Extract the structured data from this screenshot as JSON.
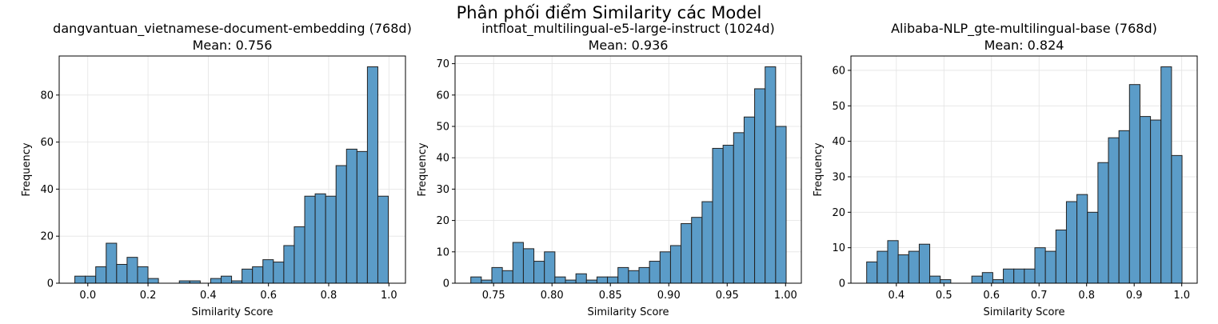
{
  "figure": {
    "suptitle": "Phân phối điểm Similarity các Model"
  },
  "style": {
    "bar_color": "#5b9cc8",
    "bar_edge": "#222222",
    "grid_color": "#e3e3e3"
  },
  "chart_data": [
    {
      "type": "bar",
      "title": "dangvantuan_vietnamese-document-embedding (768d)",
      "subtitle": "Mean: 0.756",
      "xlabel": "Similarity Score",
      "ylabel": "Frequency",
      "grid": true,
      "xlim": [
        -0.095,
        1.055
      ],
      "ylim": [
        0,
        96.6
      ],
      "xticks": [
        0.0,
        0.2,
        0.4,
        0.6,
        0.8,
        1.0
      ],
      "xtick_labels": [
        "0.0",
        "0.2",
        "0.4",
        "0.6",
        "0.8",
        "1.0"
      ],
      "yticks": [
        0,
        20,
        40,
        60,
        80
      ],
      "bin_start": -0.043,
      "bin_width": 0.0347,
      "values": [
        3,
        3,
        7,
        17,
        8,
        11,
        7,
        2,
        0,
        0,
        1,
        1,
        0,
        2,
        3,
        1,
        6,
        7,
        10,
        9,
        16,
        24,
        37,
        38,
        37,
        50,
        57,
        56,
        92,
        37
      ]
    },
    {
      "type": "bar",
      "title": "intfloat_multilingual-e5-large-instruct (1024d)",
      "subtitle": "Mean: 0.936",
      "xlabel": "Similarity Score",
      "ylabel": "Frequency",
      "grid": true,
      "xlim": [
        0.717,
        1.0135
      ],
      "ylim": [
        0,
        72.45
      ],
      "xticks": [
        0.75,
        0.8,
        0.85,
        0.9,
        0.95,
        1.0
      ],
      "xtick_labels": [
        "0.75",
        "0.80",
        "0.85",
        "0.90",
        "0.95",
        "1.00"
      ],
      "yticks": [
        0,
        10,
        20,
        30,
        40,
        50,
        60,
        70
      ],
      "bin_start": 0.7305,
      "bin_width": 0.009,
      "values": [
        2,
        1,
        5,
        4,
        13,
        11,
        7,
        10,
        2,
        1,
        3,
        1,
        2,
        2,
        5,
        4,
        5,
        7,
        10,
        12,
        19,
        21,
        26,
        43,
        44,
        48,
        53,
        62,
        69,
        50
      ]
    },
    {
      "type": "bar",
      "title": "Alibaba-NLP_gte-multilingual-base (768d)",
      "subtitle": "Mean: 0.824",
      "xlabel": "Similarity Score",
      "ylabel": "Frequency",
      "grid": true,
      "xlim": [
        0.3045,
        1.0325
      ],
      "ylim": [
        0,
        64.05
      ],
      "xticks": [
        0.4,
        0.5,
        0.6,
        0.7,
        0.8,
        0.9,
        1.0
      ],
      "xtick_labels": [
        "0.4",
        "0.5",
        "0.6",
        "0.7",
        "0.8",
        "0.9",
        "1.0"
      ],
      "yticks": [
        0,
        10,
        20,
        30,
        40,
        50,
        60
      ],
      "bin_start": 0.3376,
      "bin_width": 0.0221,
      "values": [
        6,
        9,
        12,
        8,
        9,
        11,
        2,
        1,
        0,
        0,
        2,
        3,
        1,
        4,
        4,
        4,
        10,
        9,
        15,
        23,
        25,
        20,
        34,
        41,
        43,
        56,
        47,
        46,
        61,
        36
      ]
    }
  ]
}
